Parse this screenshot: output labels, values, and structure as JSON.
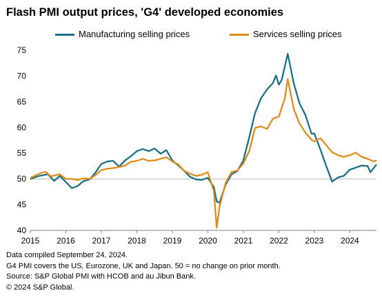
{
  "title": "Flash PMI output prices, 'G4' developed economies",
  "notes": [
    "Data compiled September 24, 2024.",
    "G4 PMI covers the US, Eurozone, UK and Japan. 50 = no change on prior month.",
    "Source: S&P Global PMI with HCOB and au Jibun Bank.",
    "© 2024 S&P Global."
  ],
  "chart_data": {
    "type": "line",
    "xlabel": "",
    "ylabel": "",
    "ylim": [
      40,
      75
    ],
    "yticks": [
      40,
      45,
      50,
      55,
      60,
      65,
      70,
      75
    ],
    "xlim": [
      2015,
      2024.75
    ],
    "xticks": [
      2015,
      2016,
      2017,
      2018,
      2019,
      2020,
      2021,
      2022,
      2023,
      2024
    ],
    "grid": "horizontal reference line at 50",
    "legend": "top",
    "series": [
      {
        "name": "Manufacturing selling prices",
        "color": "#1b6f86",
        "points": [
          [
            2015.0,
            50.0
          ],
          [
            2015.25,
            50.6
          ],
          [
            2015.5,
            50.9
          ],
          [
            2015.67,
            49.6
          ],
          [
            2015.83,
            50.6
          ],
          [
            2016.0,
            49.4
          ],
          [
            2016.17,
            48.2
          ],
          [
            2016.33,
            48.6
          ],
          [
            2016.5,
            49.6
          ],
          [
            2016.67,
            49.9
          ],
          [
            2016.83,
            51.2
          ],
          [
            2017.0,
            52.9
          ],
          [
            2017.17,
            53.4
          ],
          [
            2017.33,
            53.5
          ],
          [
            2017.5,
            52.4
          ],
          [
            2017.67,
            53.6
          ],
          [
            2017.83,
            54.4
          ],
          [
            2018.0,
            55.4
          ],
          [
            2018.17,
            55.8
          ],
          [
            2018.33,
            55.4
          ],
          [
            2018.5,
            55.9
          ],
          [
            2018.67,
            54.9
          ],
          [
            2018.83,
            55.6
          ],
          [
            2019.0,
            53.6
          ],
          [
            2019.17,
            52.6
          ],
          [
            2019.33,
            51.6
          ],
          [
            2019.5,
            50.4
          ],
          [
            2019.67,
            49.9
          ],
          [
            2019.83,
            49.8
          ],
          [
            2020.0,
            50.2
          ],
          [
            2020.17,
            48.4
          ],
          [
            2020.25,
            45.6
          ],
          [
            2020.33,
            45.4
          ],
          [
            2020.5,
            48.9
          ],
          [
            2020.67,
            50.9
          ],
          [
            2020.83,
            51.5
          ],
          [
            2021.0,
            53.6
          ],
          [
            2021.17,
            58.2
          ],
          [
            2021.33,
            62.8
          ],
          [
            2021.5,
            65.7
          ],
          [
            2021.67,
            67.4
          ],
          [
            2021.83,
            68.6
          ],
          [
            2021.92,
            70.1
          ],
          [
            2022.0,
            68.3
          ],
          [
            2022.08,
            69.2
          ],
          [
            2022.25,
            74.3
          ],
          [
            2022.42,
            68.6
          ],
          [
            2022.58,
            64.7
          ],
          [
            2022.75,
            62.4
          ],
          [
            2022.92,
            58.8
          ],
          [
            2023.0,
            58.8
          ],
          [
            2023.17,
            55.7
          ],
          [
            2023.33,
            52.6
          ],
          [
            2023.5,
            49.5
          ],
          [
            2023.67,
            50.3
          ],
          [
            2023.83,
            50.6
          ],
          [
            2024.0,
            51.8
          ],
          [
            2024.17,
            52.2
          ],
          [
            2024.33,
            52.6
          ],
          [
            2024.5,
            52.5
          ],
          [
            2024.58,
            51.3
          ],
          [
            2024.75,
            52.8
          ]
        ]
      },
      {
        "name": "Services selling prices",
        "color": "#e08a1a",
        "points": [
          [
            2015.0,
            50.2
          ],
          [
            2015.25,
            51.0
          ],
          [
            2015.42,
            51.4
          ],
          [
            2015.58,
            50.5
          ],
          [
            2015.83,
            50.9
          ],
          [
            2016.0,
            50.0
          ],
          [
            2016.17,
            50.0
          ],
          [
            2016.33,
            49.8
          ],
          [
            2016.5,
            50.1
          ],
          [
            2016.67,
            50.0
          ],
          [
            2016.83,
            50.7
          ],
          [
            2017.0,
            51.7
          ],
          [
            2017.17,
            52.0
          ],
          [
            2017.33,
            52.1
          ],
          [
            2017.5,
            52.3
          ],
          [
            2017.67,
            52.6
          ],
          [
            2017.83,
            53.3
          ],
          [
            2018.0,
            53.5
          ],
          [
            2018.17,
            53.9
          ],
          [
            2018.33,
            53.5
          ],
          [
            2018.5,
            53.6
          ],
          [
            2018.67,
            53.9
          ],
          [
            2018.83,
            54.2
          ],
          [
            2019.0,
            53.4
          ],
          [
            2019.17,
            52.8
          ],
          [
            2019.33,
            51.6
          ],
          [
            2019.5,
            51.0
          ],
          [
            2019.67,
            50.6
          ],
          [
            2019.83,
            50.8
          ],
          [
            2020.0,
            51.3
          ],
          [
            2020.17,
            47.6
          ],
          [
            2020.25,
            40.5
          ],
          [
            2020.33,
            44.6
          ],
          [
            2020.5,
            49.2
          ],
          [
            2020.67,
            51.4
          ],
          [
            2020.83,
            51.6
          ],
          [
            2021.0,
            53.0
          ],
          [
            2021.17,
            55.5
          ],
          [
            2021.33,
            59.9
          ],
          [
            2021.5,
            60.2
          ],
          [
            2021.67,
            59.7
          ],
          [
            2021.83,
            61.7
          ],
          [
            2022.0,
            62.1
          ],
          [
            2022.17,
            65.7
          ],
          [
            2022.25,
            69.4
          ],
          [
            2022.42,
            63.6
          ],
          [
            2022.58,
            60.8
          ],
          [
            2022.75,
            59.0
          ],
          [
            2022.92,
            57.6
          ],
          [
            2023.0,
            57.3
          ],
          [
            2023.17,
            57.9
          ],
          [
            2023.33,
            56.6
          ],
          [
            2023.5,
            55.2
          ],
          [
            2023.67,
            54.6
          ],
          [
            2023.83,
            54.3
          ],
          [
            2024.0,
            54.6
          ],
          [
            2024.17,
            55.1
          ],
          [
            2024.33,
            54.3
          ],
          [
            2024.5,
            53.9
          ],
          [
            2024.67,
            53.4
          ],
          [
            2024.75,
            53.6
          ]
        ]
      }
    ]
  }
}
